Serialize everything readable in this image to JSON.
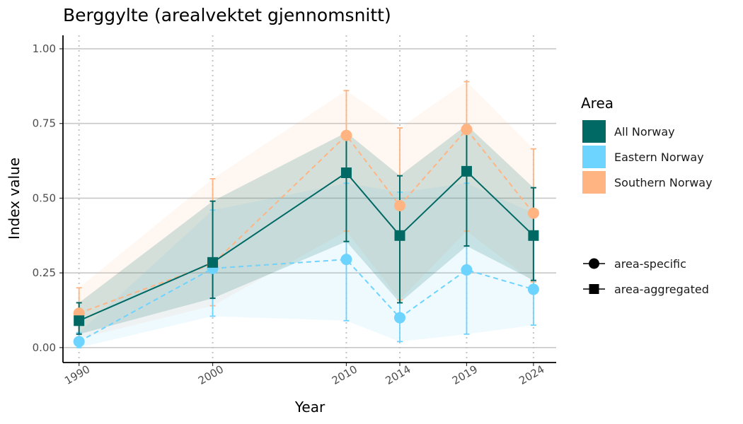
{
  "chart_data": {
    "type": "line",
    "title": "Berggylte (arealvektet gjennomsnitt)",
    "xlabel": "Year",
    "ylabel": "Index value",
    "x": [
      1990,
      2000,
      2010,
      2014,
      2019,
      2024
    ],
    "x_tick_labels": [
      "1990",
      "2000",
      "2010",
      "2014",
      "2019",
      "2024"
    ],
    "ylim": [
      0,
      1
    ],
    "y_ticks": [
      0,
      0.25,
      0.5,
      0.75,
      1.0
    ],
    "y_tick_labels": [
      "0.00",
      "0.25",
      "0.50",
      "0.75",
      "1.00"
    ],
    "grid": "horizontal major lines; dotted vertical lines at each year",
    "legend": {
      "placement": "right",
      "area_title": "Area",
      "type_entries": [
        "area-specific",
        "area-aggregated"
      ]
    },
    "series": [
      {
        "name": "Southern Norway",
        "color": "#FFB482",
        "linestyle": "dashed",
        "marker": "circle",
        "values": [
          0.115,
          0.28,
          0.71,
          0.475,
          0.73,
          0.45
        ],
        "lower": [
          0.03,
          0.14,
          0.39,
          0.16,
          0.39,
          0.22
        ],
        "upper": [
          0.2,
          0.565,
          0.86,
          0.735,
          0.89,
          0.665
        ]
      },
      {
        "name": "Eastern Norway",
        "color": "#6DD3FF",
        "linestyle": "dashed",
        "marker": "circle",
        "values": [
          0.02,
          0.265,
          0.295,
          0.1,
          0.26,
          0.195
        ],
        "lower": [
          0.0,
          0.105,
          0.09,
          0.02,
          0.045,
          0.075
        ],
        "upper": [
          0.05,
          0.46,
          0.55,
          0.52,
          0.55,
          0.45
        ]
      },
      {
        "name": "All Norway",
        "color": "#006964",
        "linestyle": "solid",
        "marker": "square",
        "values": [
          0.09,
          0.285,
          0.585,
          0.375,
          0.59,
          0.375
        ],
        "lower": [
          0.045,
          0.165,
          0.355,
          0.15,
          0.34,
          0.225
        ],
        "upper": [
          0.15,
          0.49,
          0.72,
          0.575,
          0.745,
          0.535
        ]
      }
    ]
  }
}
